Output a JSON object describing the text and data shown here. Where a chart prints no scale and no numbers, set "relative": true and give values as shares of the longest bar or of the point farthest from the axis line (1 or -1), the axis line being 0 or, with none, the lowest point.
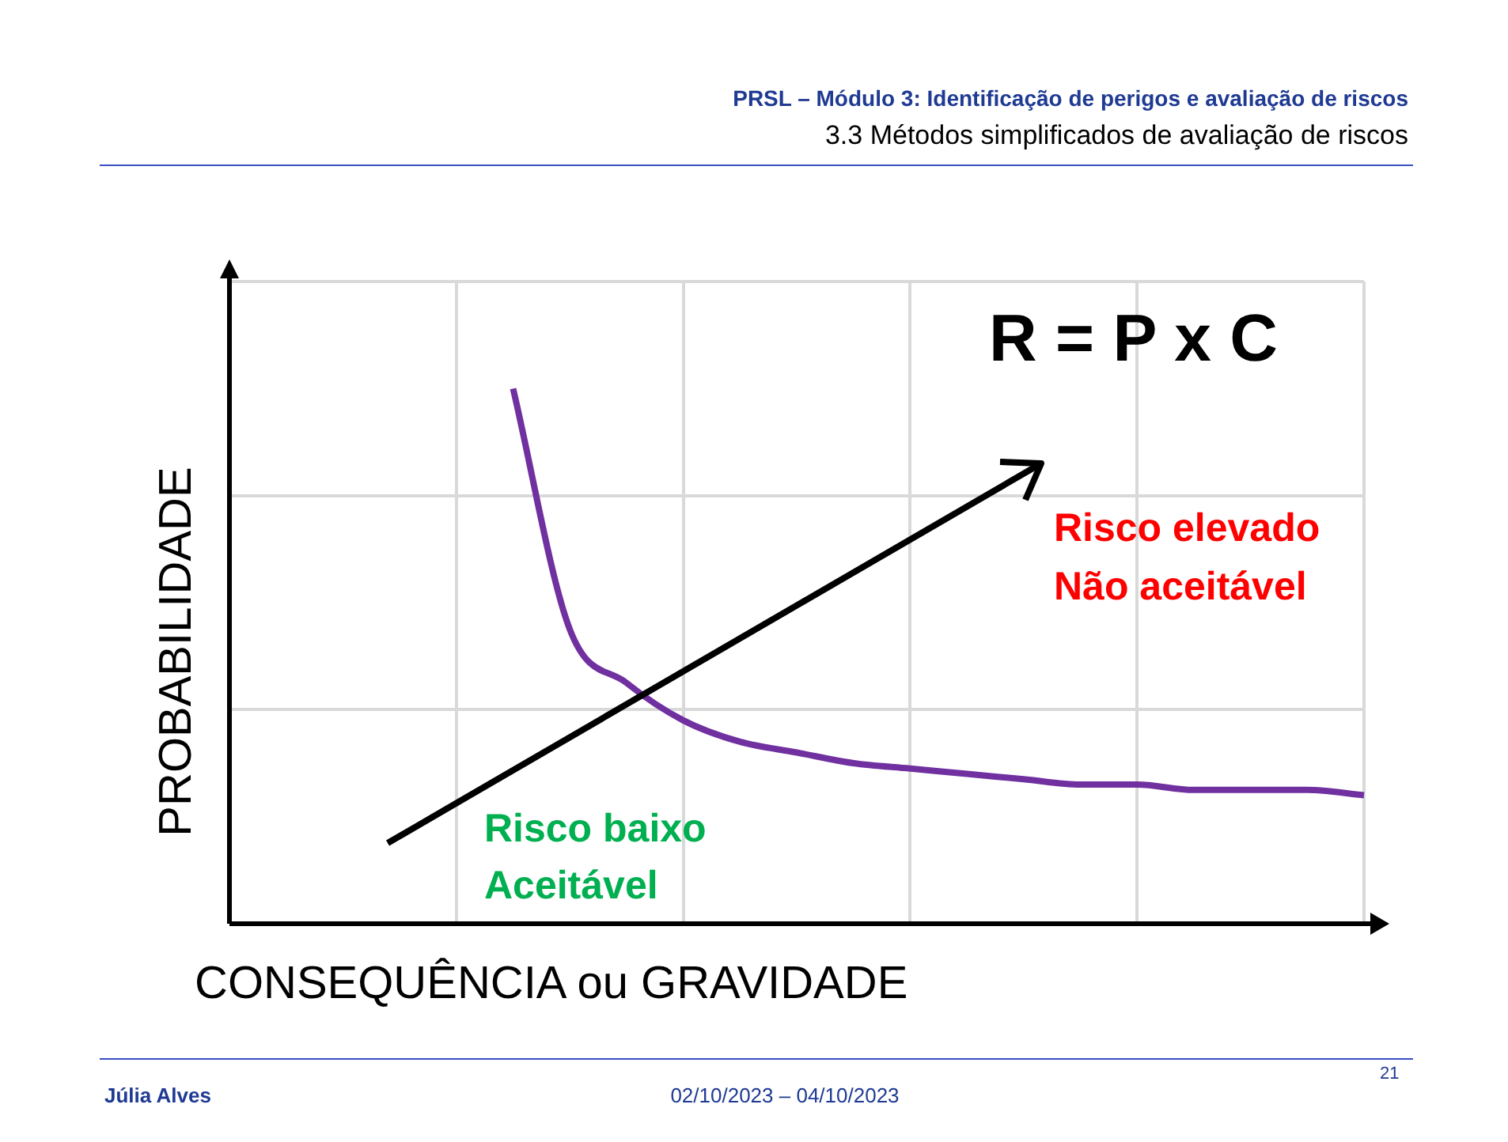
{
  "chart_data": {
    "type": "line",
    "relative": true,
    "title": "PRSL – Módulo 3: Identificação de perigos e avaliação de riscos",
    "subtitle": "3.3 Métodos simplificados de avaliação de riscos",
    "xlabel": "CONSEQUÊNCIA ou GRAVIDADE",
    "ylabel": "PROBABILIDADE",
    "categories": [
      null,
      null,
      null,
      null,
      null,
      null,
      null,
      null,
      null,
      null,
      null,
      null,
      null,
      null,
      null,
      null,
      null,
      null,
      null,
      null,
      null
    ],
    "series": [
      {
        "color": "#7030a0",
        "values": [
          null,
          null,
          null,
          null,
          null,
          1,
          0.55,
          0.45,
          0.38,
          0.34,
          0.32,
          0.3,
          0.29,
          0.28,
          0.27,
          0.26,
          0.26,
          0.25,
          0.25,
          0.25,
          0.24
        ]
      }
    ],
    "marker": "none",
    "grid": true,
    "legend": false,
    "tick_labels": false,
    "annotations": [
      "R = P x C",
      "Risco elevado",
      "Não aceitável",
      "Risco baixo",
      "Aceitável",
      "Júlia Alves",
      "02/10/2023 – 04/10/2023",
      "21"
    ]
  }
}
